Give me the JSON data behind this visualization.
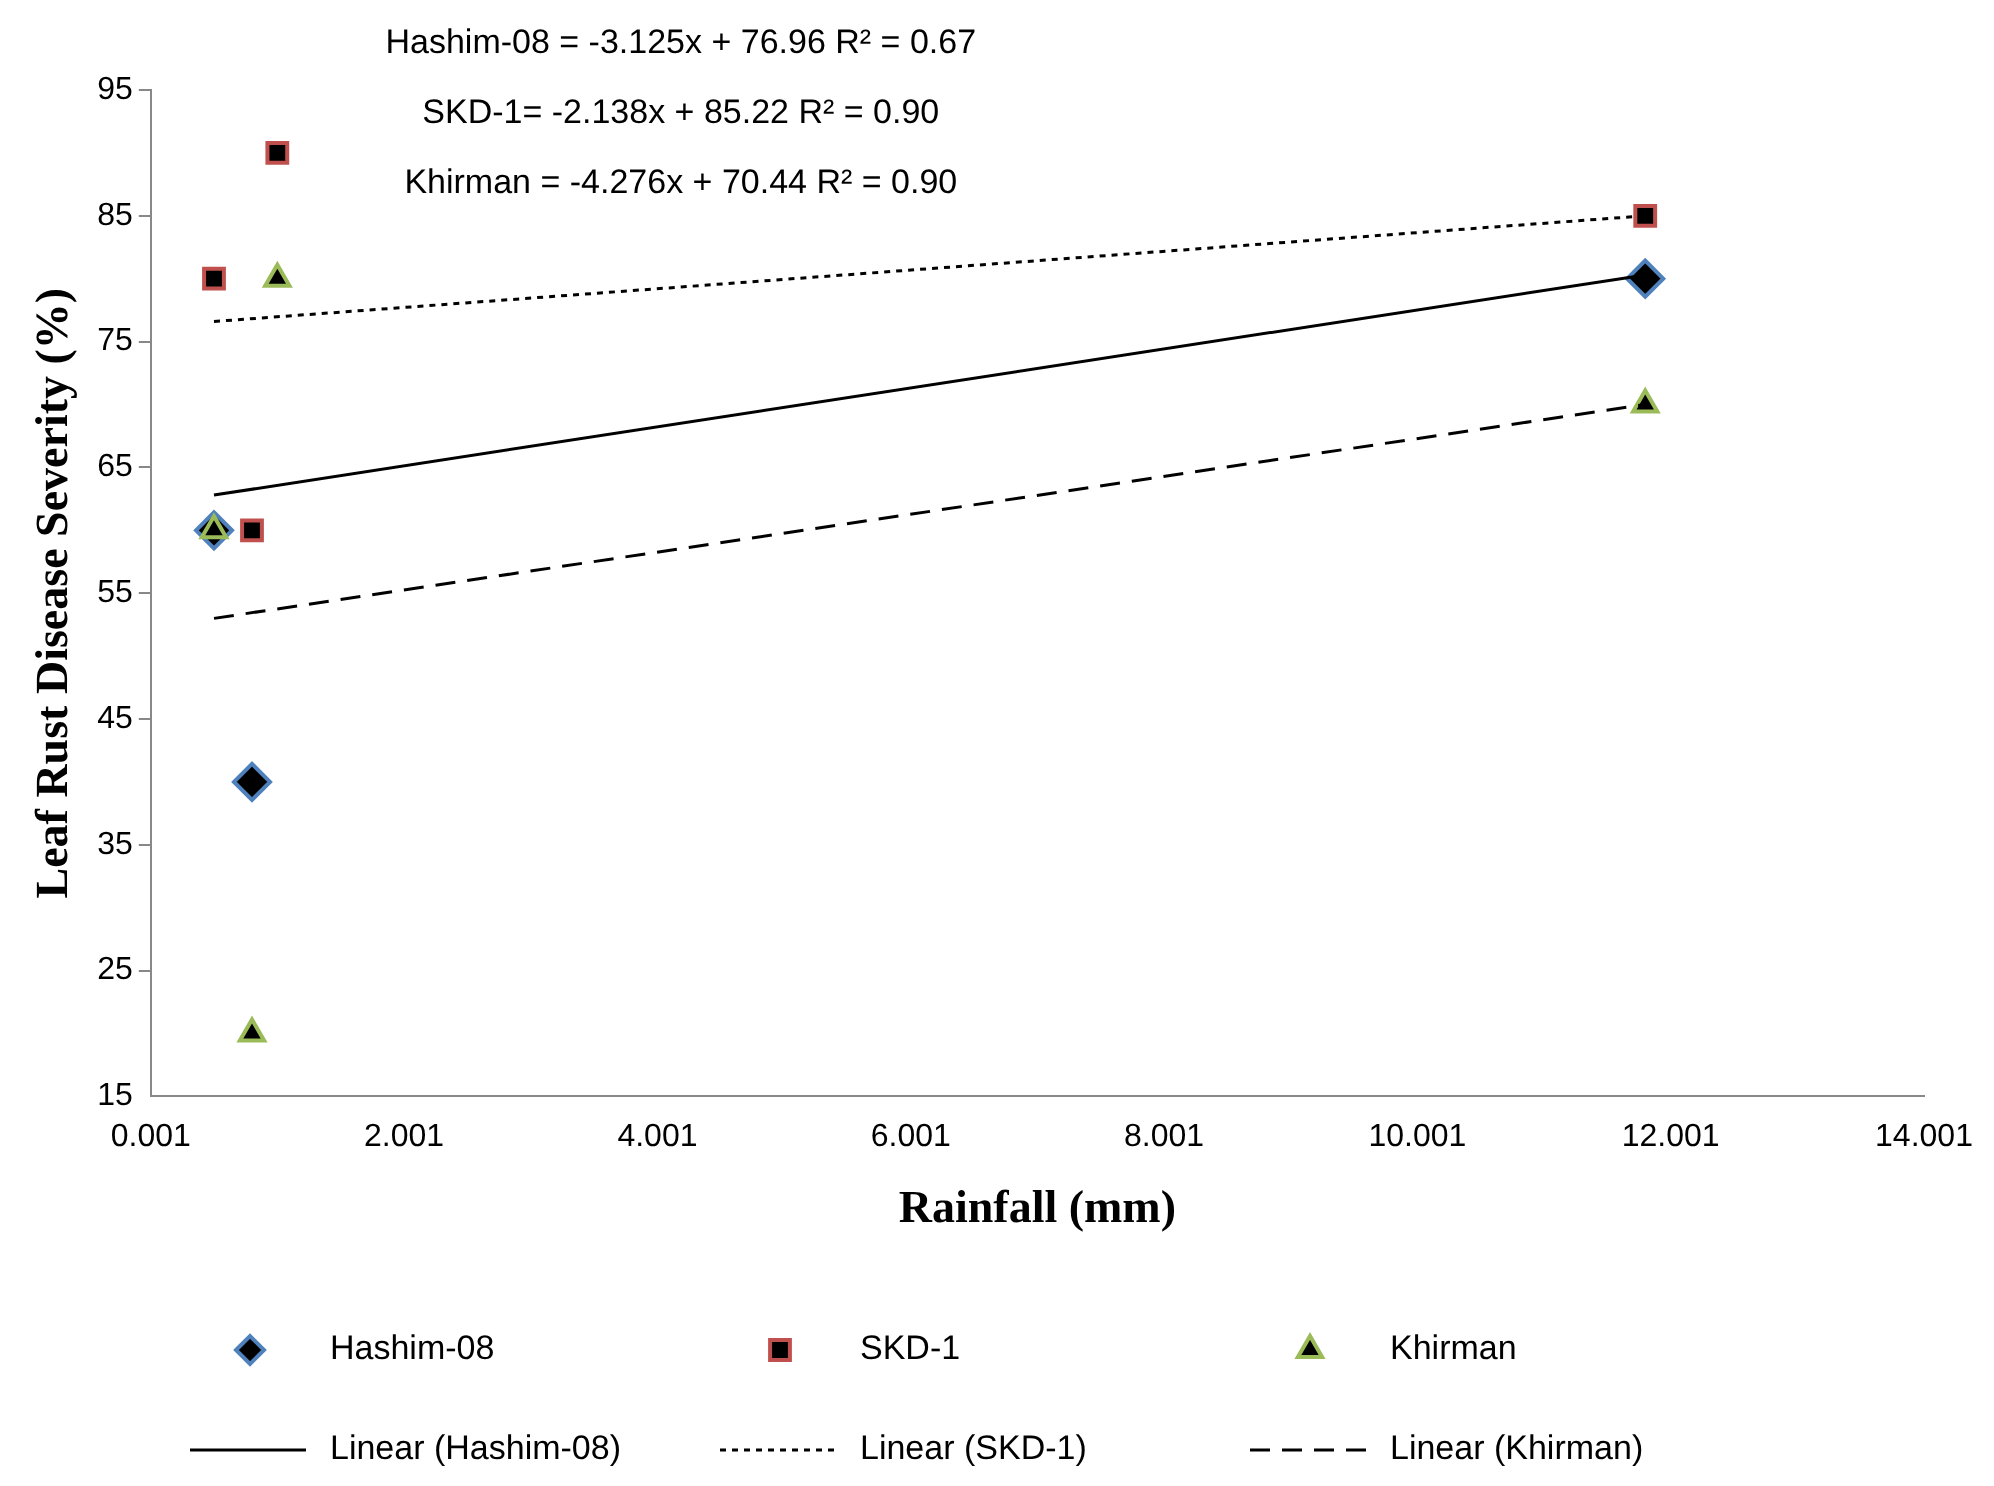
{
  "chart_data": {
    "type": "scatter",
    "xlabel": "Rainfall (mm)",
    "ylabel": "Leaf Rust Disease Severity (%)",
    "annotations": [
      "Hashim-08 = -3.125x + 76.96 R² = 0.67",
      "SKD-1= -2.138x + 85.22 R² = 0.90",
      "Khirman = -4.276x + 70.44 R² = 0.90"
    ],
    "series": [
      {
        "name": "Hashim-08",
        "color": "#4f81bd",
        "marker": "diamond",
        "x": [
          0.5,
          0.8,
          11.8
        ],
        "values": [
          60,
          40,
          80
        ]
      },
      {
        "name": "SKD-1",
        "color": "#c0504d",
        "marker": "square",
        "x": [
          0.5,
          0.8,
          1.0,
          11.8
        ],
        "values": [
          80,
          60,
          90,
          85
        ]
      },
      {
        "name": "Khirman",
        "color": "#9bbb59",
        "marker": "triangle",
        "x": [
          0.5,
          0.8,
          1.0,
          11.8
        ],
        "values": [
          60,
          20,
          80,
          70
        ]
      },
      {
        "name": "Linear (Hashim-08)",
        "type": "line",
        "color": "#000000",
        "marker": "none",
        "line_style": "solid",
        "x": [
          0.5,
          11.8
        ],
        "values": [
          62.8,
          80.3
        ]
      },
      {
        "name": "Linear (SKD-1)",
        "type": "line",
        "color": "#000000",
        "marker": "none",
        "line_style": "dotted",
        "x": [
          0.5,
          11.8
        ],
        "values": [
          76.6,
          85.0
        ]
      },
      {
        "name": "Linear (Khirman)",
        "type": "line",
        "color": "#000000",
        "marker": "none",
        "line_style": "dashed",
        "x": [
          0.5,
          11.8
        ],
        "values": [
          53.0,
          70.0
        ]
      }
    ],
    "xlim": [
      0.001,
      14.001
    ],
    "xticks": [
      0.001,
      2.001,
      4.001,
      6.001,
      8.001,
      10.001,
      12.001,
      14.001
    ],
    "ylim": [
      15,
      95
    ],
    "yticks": [
      15,
      25,
      35,
      45,
      55,
      65,
      75,
      85,
      95
    ],
    "grid": false,
    "legend": "bottom"
  }
}
